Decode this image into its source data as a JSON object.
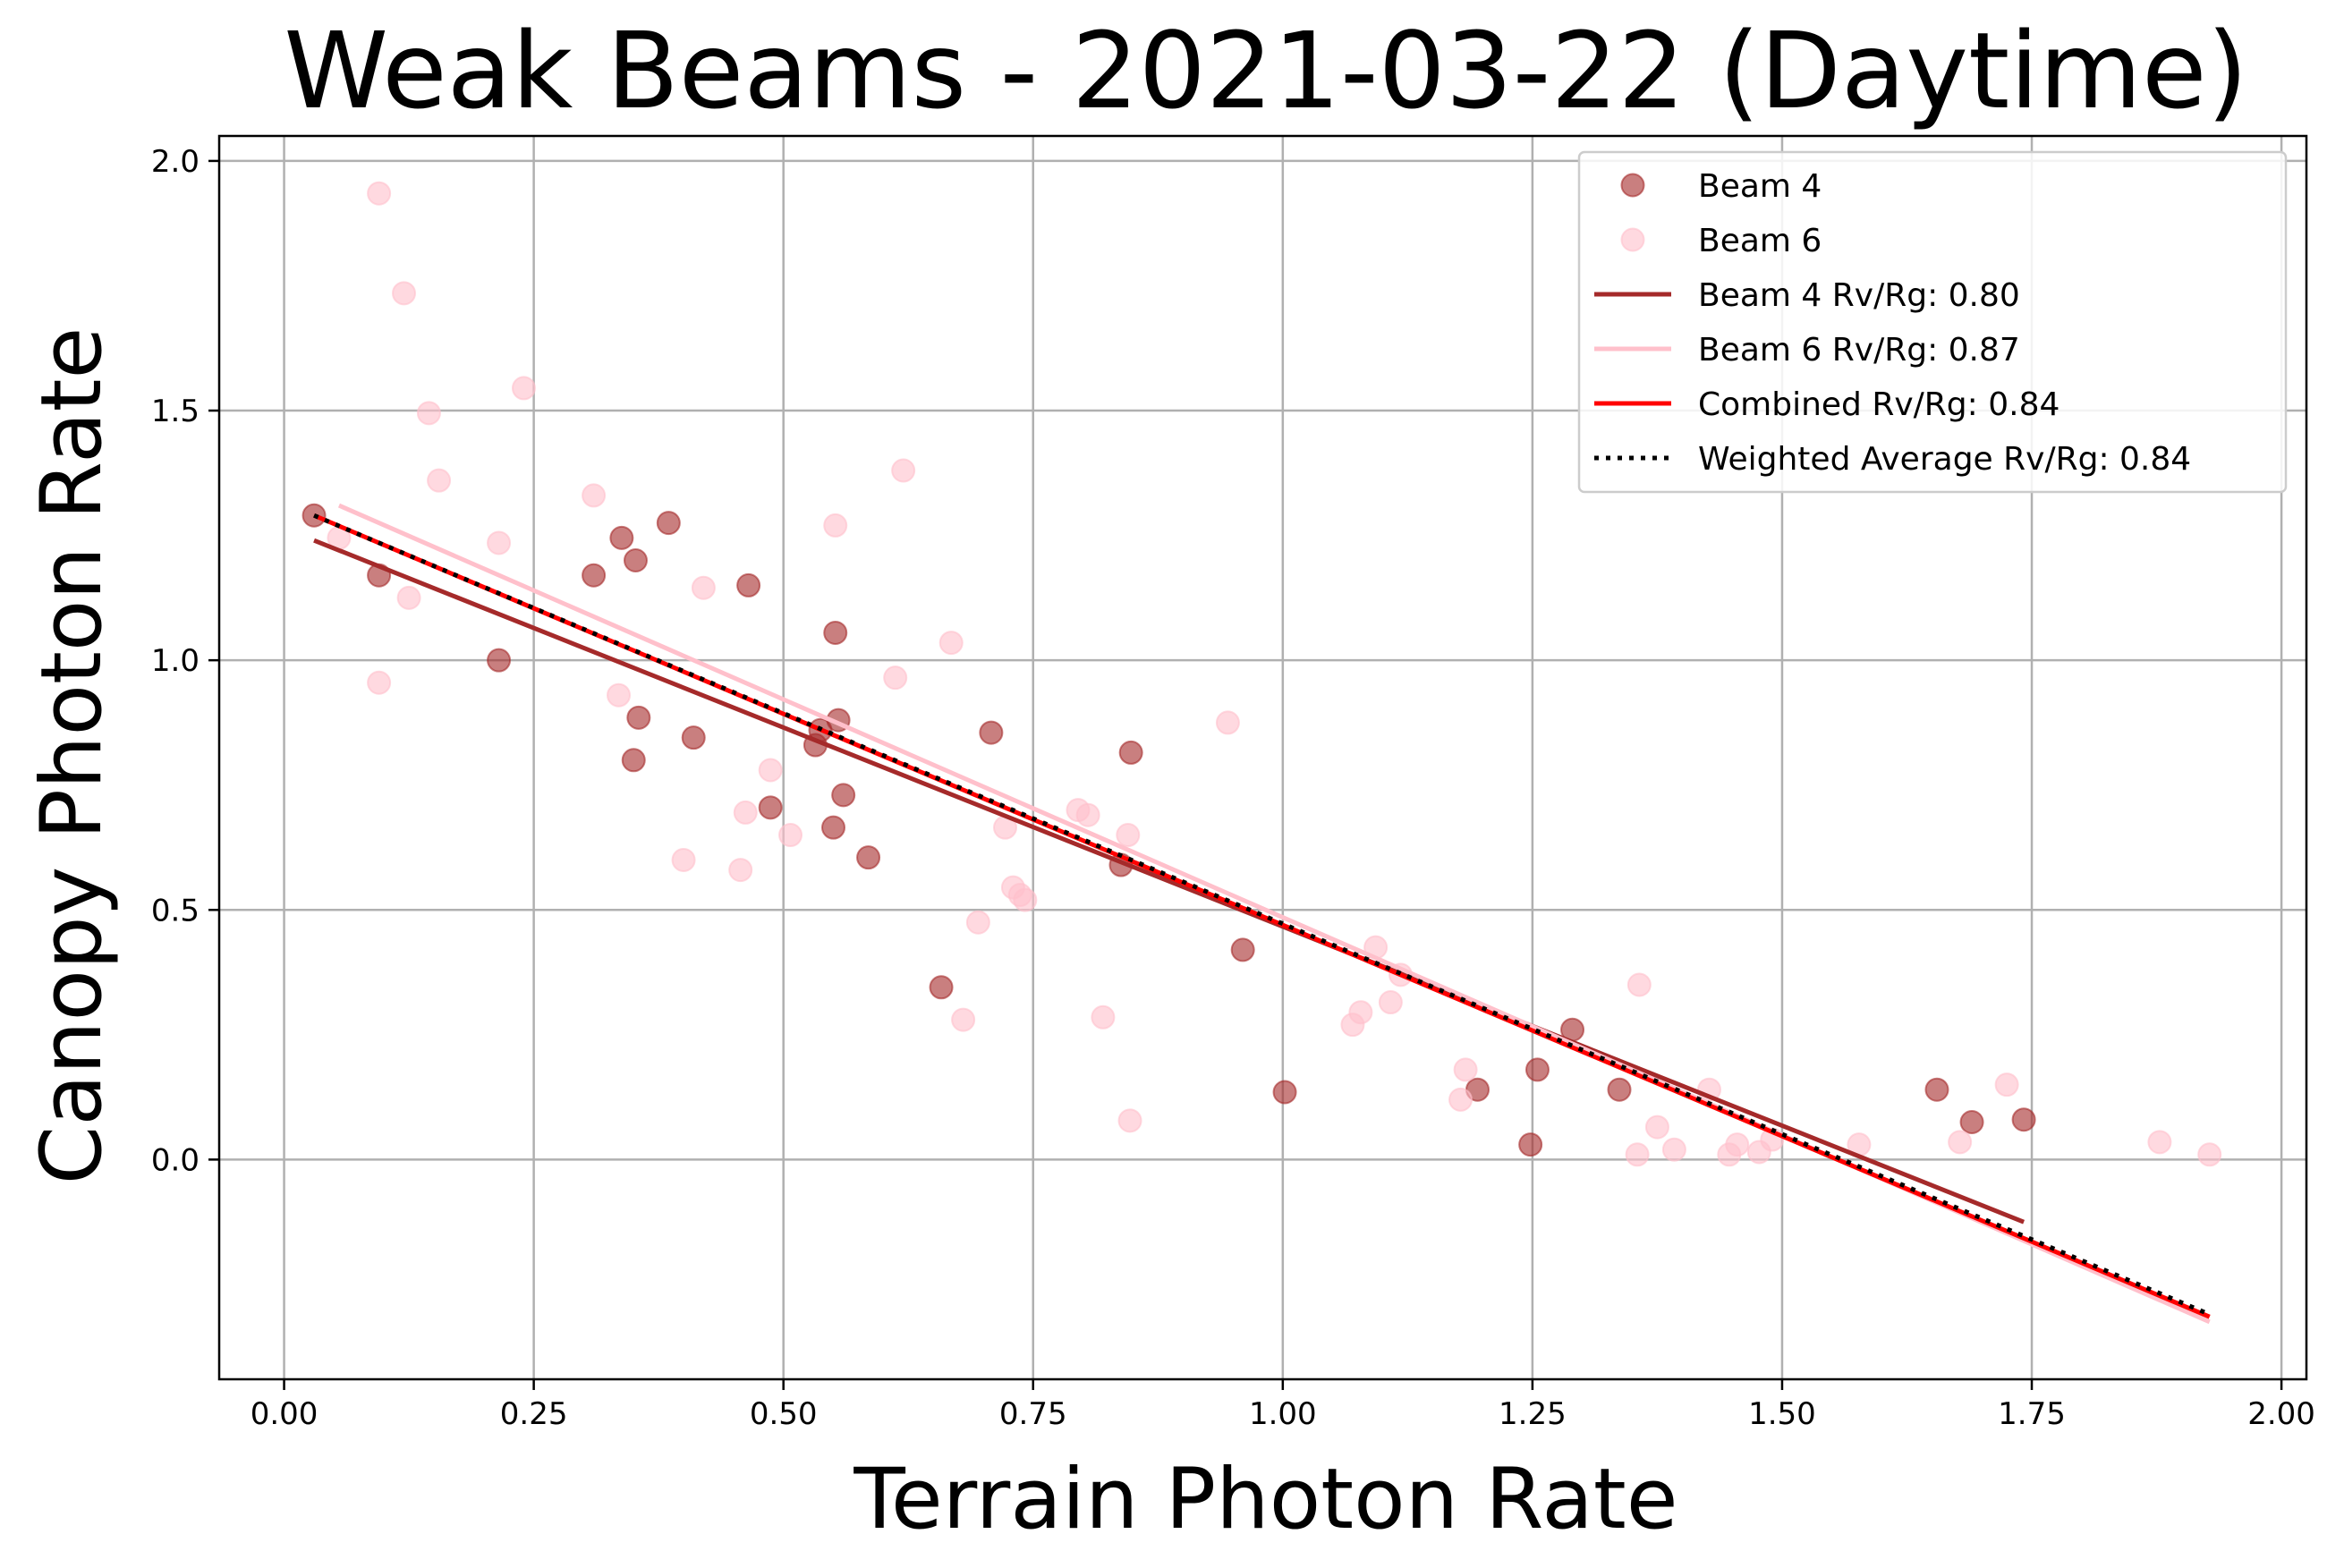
{
  "chart_data": {
    "type": "scatter",
    "title": "Weak Beams - 2021-03-22 (Daytime)",
    "xlabel": "Terrain Photon Rate",
    "ylabel": "Canopy Photon Rate",
    "xlim": [
      -0.065,
      2.025
    ],
    "ylim": [
      -0.44,
      2.05
    ],
    "xticks": [
      0.0,
      0.25,
      0.5,
      0.75,
      1.0,
      1.25,
      1.5,
      1.75,
      2.0
    ],
    "xtick_labels": [
      "0.00",
      "0.25",
      "0.50",
      "0.75",
      "1.00",
      "1.25",
      "1.50",
      "1.75",
      "2.00"
    ],
    "yticks": [
      0.0,
      0.5,
      1.0,
      1.5,
      2.0
    ],
    "ytick_labels": [
      "0.0",
      "0.5",
      "1.0",
      "1.5",
      "2.0"
    ],
    "grid": true,
    "legend_position": "top-right",
    "series": [
      {
        "name": "Beam 4",
        "kind": "scatter",
        "color": "#a52a2a",
        "opacity": 0.6,
        "points": [
          [
            0.03,
            1.29
          ],
          [
            0.095,
            1.17
          ],
          [
            0.215,
            1.0
          ],
          [
            0.31,
            1.17
          ],
          [
            0.338,
            1.245
          ],
          [
            0.352,
            1.2
          ],
          [
            0.385,
            1.275
          ],
          [
            0.465,
            1.15
          ],
          [
            0.355,
            0.885
          ],
          [
            0.35,
            0.8
          ],
          [
            0.41,
            0.845
          ],
          [
            0.487,
            0.705
          ],
          [
            0.532,
            0.83
          ],
          [
            0.537,
            0.86
          ],
          [
            0.552,
            1.055
          ],
          [
            0.555,
            0.88
          ],
          [
            0.56,
            0.73
          ],
          [
            0.55,
            0.665
          ],
          [
            0.585,
            0.605
          ],
          [
            0.658,
            0.345
          ],
          [
            0.708,
            0.855
          ],
          [
            0.848,
            0.815
          ],
          [
            0.838,
            0.59
          ],
          [
            0.96,
            0.42
          ],
          [
            1.002,
            0.135
          ],
          [
            1.195,
            0.14
          ],
          [
            1.248,
            0.03
          ],
          [
            1.255,
            0.18
          ],
          [
            1.29,
            0.26
          ],
          [
            1.337,
            0.14
          ],
          [
            1.655,
            0.14
          ],
          [
            1.69,
            0.075
          ],
          [
            1.742,
            0.08
          ]
        ]
      },
      {
        "name": "Beam 6",
        "kind": "scatter",
        "color": "#ffc0cb",
        "opacity": 0.6,
        "points": [
          [
            0.095,
            1.935
          ],
          [
            0.12,
            1.735
          ],
          [
            0.145,
            1.495
          ],
          [
            0.155,
            1.36
          ],
          [
            0.24,
            1.545
          ],
          [
            0.055,
            1.245
          ],
          [
            0.125,
            1.125
          ],
          [
            0.095,
            0.955
          ],
          [
            0.215,
            1.235
          ],
          [
            0.31,
            1.33
          ],
          [
            0.42,
            1.145
          ],
          [
            0.335,
            0.93
          ],
          [
            0.4,
            0.6
          ],
          [
            0.457,
            0.58
          ],
          [
            0.462,
            0.695
          ],
          [
            0.487,
            0.78
          ],
          [
            0.507,
            0.65
          ],
          [
            0.552,
            1.27
          ],
          [
            0.612,
            0.965
          ],
          [
            0.62,
            1.38
          ],
          [
            0.668,
            1.035
          ],
          [
            0.68,
            0.28
          ],
          [
            0.695,
            0.475
          ],
          [
            0.722,
            0.665
          ],
          [
            0.73,
            0.545
          ],
          [
            0.737,
            0.53
          ],
          [
            0.742,
            0.52
          ],
          [
            0.795,
            0.7
          ],
          [
            0.805,
            0.69
          ],
          [
            0.82,
            0.285
          ],
          [
            0.845,
            0.65
          ],
          [
            0.847,
            0.078
          ],
          [
            0.945,
            0.875
          ],
          [
            1.07,
            0.27
          ],
          [
            1.078,
            0.295
          ],
          [
            1.093,
            0.425
          ],
          [
            1.108,
            0.315
          ],
          [
            1.118,
            0.37
          ],
          [
            1.178,
            0.12
          ],
          [
            1.183,
            0.18
          ],
          [
            1.355,
            0.01
          ],
          [
            1.357,
            0.35
          ],
          [
            1.375,
            0.065
          ],
          [
            1.392,
            0.02
          ],
          [
            1.427,
            0.14
          ],
          [
            1.447,
            0.01
          ],
          [
            1.455,
            0.03
          ],
          [
            1.477,
            0.015
          ],
          [
            1.49,
            0.04
          ],
          [
            1.577,
            0.03
          ],
          [
            1.678,
            0.035
          ],
          [
            1.725,
            0.15
          ],
          [
            1.878,
            0.035
          ],
          [
            1.928,
            0.01
          ]
        ]
      },
      {
        "name": "Beam 4 Rv/Rg: 0.80",
        "kind": "line",
        "color": "#a52a2a",
        "dash": "solid",
        "points": [
          [
            0.03,
            1.24
          ],
          [
            1.742,
            -0.125
          ]
        ]
      },
      {
        "name": "Beam 6 Rv/Rg: 0.87",
        "kind": "line",
        "color": "#ffc0cb",
        "dash": "solid",
        "points": [
          [
            0.055,
            1.31
          ],
          [
            1.928,
            -0.325
          ]
        ]
      },
      {
        "name": "Combined Rv/Rg: 0.84",
        "kind": "line",
        "color": "#ff0000",
        "dash": "solid",
        "points": [
          [
            0.03,
            1.29
          ],
          [
            1.928,
            -0.315
          ]
        ]
      },
      {
        "name": "Weighted Average Rv/Rg: 0.84",
        "kind": "line",
        "color": "#000000",
        "dash": "dotted",
        "points": [
          [
            0.03,
            1.29
          ],
          [
            1.928,
            -0.31
          ]
        ]
      }
    ]
  }
}
